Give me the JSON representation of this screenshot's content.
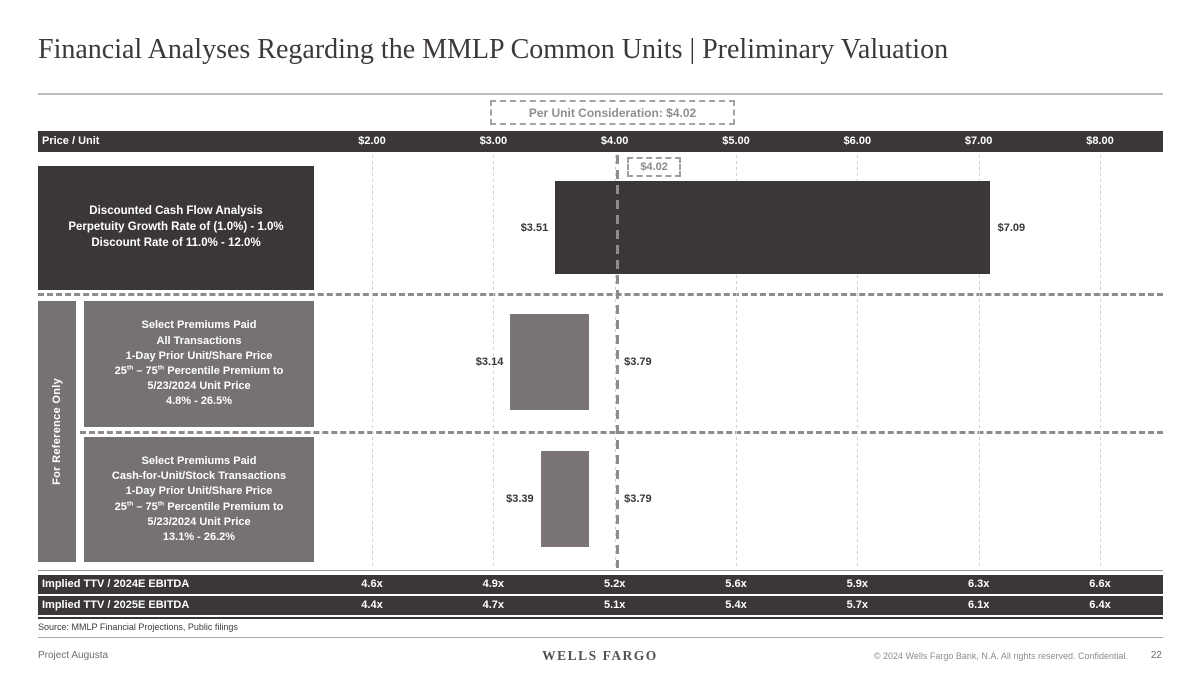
{
  "slide": {
    "title": "Financial Analyses Regarding the MMLP Common Units | Preliminary Valuation",
    "source": "Source: MMLP Financial Projections, Public filings",
    "project": "Project Augusta",
    "brand": "WELLS FARGO",
    "copyright": "© 2024 Wells Fargo Bank, N.A. All rights reserved. Confidential.",
    "page_number": "22"
  },
  "chart_data": {
    "type": "bar",
    "subtype": "horizontal_range_football_field",
    "title": "Financial Analyses Regarding the MMLP Common Units | Preliminary Valuation",
    "axis": {
      "label": "Price / Unit",
      "min": 2.0,
      "max": 8.0,
      "ticks": [
        2.0,
        3.0,
        4.0,
        5.0,
        6.0,
        7.0,
        8.0
      ],
      "tick_labels": [
        "$2.00",
        "$3.00",
        "$4.00",
        "$5.00",
        "$6.00",
        "$7.00",
        "$8.00"
      ],
      "grid": true
    },
    "marker": {
      "value": 4.02,
      "label": "$4.02",
      "top_label": "Per Unit Consideration: $4.02"
    },
    "reference_label": "For Reference Only",
    "series": [
      {
        "label_lines": [
          "Discounted Cash Flow Analysis",
          "Perpetuity Growth Rate of (1.0%) - 1.0%",
          "Discount Rate of 11.0% - 12.0%"
        ],
        "low": 3.51,
        "high": 7.09,
        "low_label": "$3.51",
        "high_label": "$7.09",
        "reference_only": false,
        "style": "dark"
      },
      {
        "label_lines": [
          "Select Premiums Paid",
          "All Transactions",
          "1-Day Prior Unit/Share Price",
          "25th – 75th Percentile Premium to",
          "5/23/2024 Unit Price",
          "4.8% - 26.5%"
        ],
        "low": 3.14,
        "high": 3.79,
        "low_label": "$3.14",
        "high_label": "$3.79",
        "reference_only": true,
        "style": "gray"
      },
      {
        "label_lines": [
          "Select Premiums Paid",
          "Cash-for-Unit/Stock Transactions",
          "1-Day Prior Unit/Share Price",
          "25th – 75th Percentile Premium to",
          "5/23/2024 Unit Price",
          "13.1% - 26.2%"
        ],
        "low": 3.39,
        "high": 3.79,
        "low_label": "$3.39",
        "high_label": "$3.79",
        "reference_only": true,
        "style": "gray"
      }
    ],
    "table": {
      "rows": [
        {
          "label": "Implied TTV / 2024E EBITDA",
          "values": [
            "4.6x",
            "4.9x",
            "5.2x",
            "5.6x",
            "5.9x",
            "6.3x",
            "6.6x"
          ]
        },
        {
          "label": "Implied TTV / 2025E EBITDA",
          "values": [
            "4.4x",
            "4.7x",
            "5.1x",
            "5.4x",
            "5.7x",
            "6.1x",
            "6.4x"
          ]
        }
      ]
    },
    "colors": {
      "dark": "#3b3638",
      "gray": "#767172",
      "bar_gray": "#7a7475"
    }
  }
}
